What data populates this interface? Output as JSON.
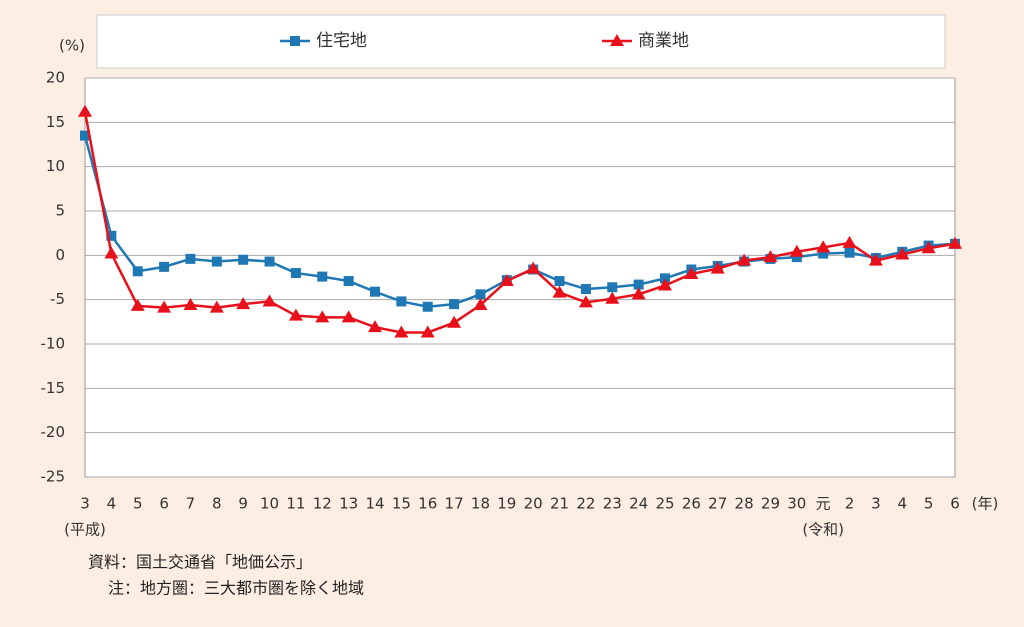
{
  "chart_data": {
    "type": "line",
    "y_unit": "(%)",
    "x_unit": "(年)",
    "categories": [
      "3",
      "4",
      "5",
      "6",
      "7",
      "8",
      "9",
      "10",
      "11",
      "12",
      "13",
      "14",
      "15",
      "16",
      "17",
      "18",
      "19",
      "20",
      "21",
      "22",
      "23",
      "24",
      "25",
      "26",
      "27",
      "28",
      "29",
      "30",
      "元",
      "2",
      "3",
      "4",
      "5",
      "6"
    ],
    "x_era_labels": [
      "(平成)",
      null,
      null,
      null,
      null,
      null,
      null,
      null,
      null,
      null,
      null,
      null,
      null,
      null,
      null,
      null,
      null,
      null,
      null,
      null,
      null,
      null,
      null,
      null,
      null,
      null,
      null,
      null,
      "(令和)",
      null,
      null,
      null,
      null,
      null
    ],
    "series": [
      {
        "name": "住宅地",
        "color": "#1f77b4",
        "marker": "square",
        "values": [
          13.5,
          2.2,
          -1.8,
          -1.3,
          -0.4,
          -0.7,
          -0.5,
          -0.7,
          -2.0,
          -2.4,
          -2.9,
          -4.1,
          -5.2,
          -5.8,
          -5.5,
          -4.4,
          -2.8,
          -1.6,
          -2.9,
          -3.8,
          -3.6,
          -3.3,
          -2.6,
          -1.6,
          -1.2,
          -0.7,
          -0.4,
          -0.2,
          0.2,
          0.3,
          -0.3,
          0.4,
          1.1,
          1.3
        ]
      },
      {
        "name": "商業地",
        "color": "#e8101a",
        "marker": "triangle",
        "values": [
          16.2,
          0.2,
          -5.7,
          -5.9,
          -5.6,
          -5.9,
          -5.5,
          -5.2,
          -6.8,
          -7.0,
          -7.0,
          -8.1,
          -8.7,
          -8.7,
          -7.6,
          -5.6,
          -2.9,
          -1.5,
          -4.2,
          -5.3,
          -4.9,
          -4.4,
          -3.4,
          -2.1,
          -1.5,
          -0.6,
          -0.2,
          0.4,
          0.9,
          1.4,
          -0.6,
          0.1,
          0.8,
          1.3
        ]
      }
    ],
    "ylim": [
      -25,
      20
    ],
    "yticks": [
      -25,
      -20,
      -15,
      -10,
      -5,
      0,
      5,
      10,
      15,
      20
    ],
    "grid": true,
    "notes": [
      "資料：国土交通省「地価公示」",
      "注：地方圏：三大都市圏を除く地域"
    ]
  }
}
